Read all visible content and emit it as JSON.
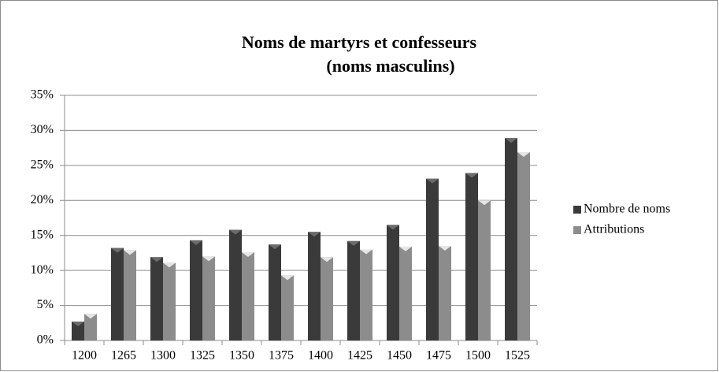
{
  "chart_data": {
    "type": "bar",
    "title": "Noms de martyrs et confesseurs",
    "subtitle": "(noms masculins)",
    "categories": [
      "1200",
      "1265",
      "1300",
      "1325",
      "1350",
      "1375",
      "1400",
      "1425",
      "1450",
      "1475",
      "1500",
      "1525"
    ],
    "series": [
      {
        "name": "Nombre de noms",
        "color": "#3a3a3a",
        "values": [
          2.7,
          13.2,
          11.9,
          14.3,
          15.8,
          13.7,
          15.5,
          14.2,
          16.5,
          23.1,
          23.9,
          28.9
        ]
      },
      {
        "name": "Attributions",
        "color": "#8c8c8c",
        "values": [
          3.8,
          12.9,
          11.1,
          12.0,
          12.6,
          9.3,
          11.9,
          13.0,
          13.4,
          13.5,
          20.0,
          26.9
        ]
      }
    ],
    "ylim": [
      0,
      35
    ],
    "yticks": [
      {
        "value": 0,
        "label": "0%"
      },
      {
        "value": 5,
        "label": "5%"
      },
      {
        "value": 10,
        "label": "10%"
      },
      {
        "value": 15,
        "label": "15%"
      },
      {
        "value": 20,
        "label": "20%"
      },
      {
        "value": 25,
        "label": "25%"
      },
      {
        "value": 30,
        "label": "30%"
      },
      {
        "value": 35,
        "label": "35%"
      }
    ],
    "grid": true,
    "legend": "right"
  }
}
